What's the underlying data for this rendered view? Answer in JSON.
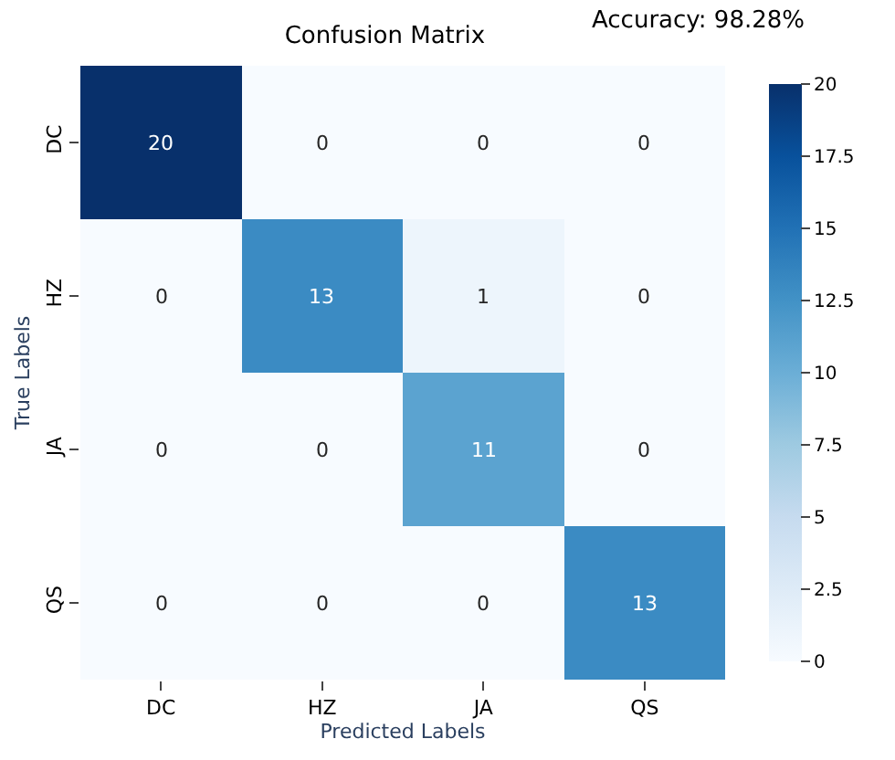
{
  "chart_data": {
    "type": "heatmap",
    "title": "Confusion Matrix",
    "xlabel": "Predicted Labels",
    "ylabel": "True Labels",
    "annotations": [
      "Accuracy: 98.28%"
    ],
    "categories": [
      "DC",
      "HZ",
      "JA",
      "QS"
    ],
    "y_categories": [
      "DC",
      "HZ",
      "JA",
      "QS"
    ],
    "cells": [
      [
        20,
        0,
        0,
        0
      ],
      [
        0,
        13,
        1,
        0
      ],
      [
        0,
        0,
        11,
        0
      ],
      [
        0,
        0,
        0,
        13
      ]
    ],
    "data_labels": true,
    "clim": [
      0,
      20
    ],
    "cticks": [
      0,
      2.5,
      5,
      7.5,
      10,
      12.5,
      15,
      17.5,
      20
    ]
  }
}
